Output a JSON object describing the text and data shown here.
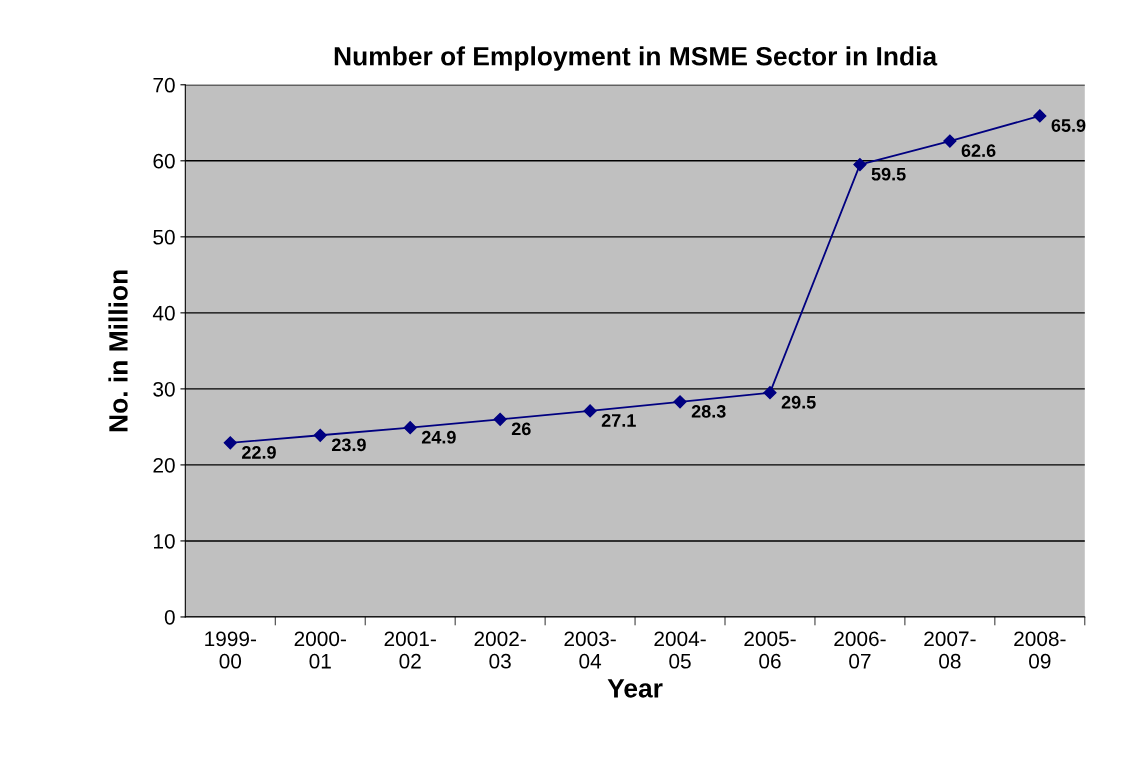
{
  "chart_data": {
    "type": "line",
    "title": "Number of Employment in MSME Sector in India",
    "xlabel": "Year",
    "ylabel": "No. in Million",
    "categories": [
      "1999-\n00",
      "2000-\n01",
      "2001-\n02",
      "2002-\n03",
      "2003-\n04",
      "2004-\n05",
      "2005-\n06",
      "2006-\n07",
      "2007-\n08",
      "2008-\n09"
    ],
    "series": [
      {
        "color": "#000080",
        "values": [
          22.9,
          23.9,
          24.9,
          26,
          27.1,
          28.3,
          29.5,
          59.5,
          62.6,
          65.9
        ]
      }
    ],
    "ylim": [
      0,
      70
    ],
    "yticks": [
      0,
      10,
      20,
      30,
      40,
      50,
      60,
      70
    ],
    "grid": "y",
    "marker": "diamond",
    "line_style": "solid",
    "data_labels": true
  }
}
